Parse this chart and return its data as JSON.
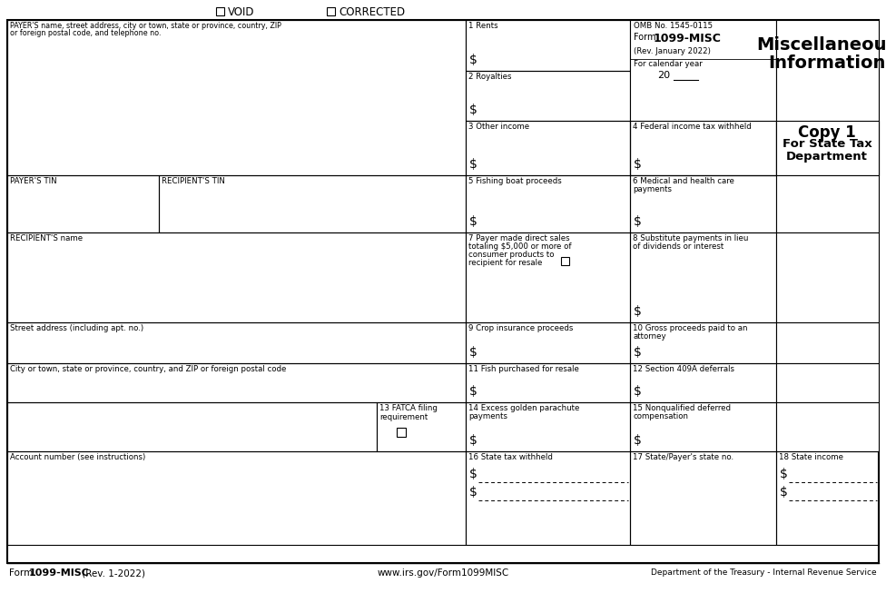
{
  "bg_color": "#FFFFFF",
  "light_blue": "#E8F0F8",
  "gray_bg": "#BBBBBB",
  "header_void_text": "VOID",
  "header_corrected_text": "CORRECTED",
  "form_title_line1": "Miscellaneous",
  "form_title_line2": "Information",
  "copy_text": "Copy 1",
  "copy_sub1": "For State Tax",
  "copy_sub2": "Department",
  "omb_text": "OMB No. 1545-0115",
  "form_bold": "1099-MISC",
  "form_pre": "Form ",
  "rev_text": "(Rev. January 2022)",
  "cal_year_text": "For calendar year",
  "cal_year_num": "20",
  "footer_form_pre": "Form ",
  "footer_form_bold": "1099-MISC",
  "footer_form_reg": " (Rev. 1-2022)",
  "footer_url": "www.irs.gov/Form1099MISC",
  "footer_dept": "Department of the Treasury - Internal Revenue Service",
  "FL": 8,
  "FR": 968,
  "FT": 22,
  "FB": 620,
  "C1": 8,
  "C2": 175,
  "C3": 513,
  "C4": 694,
  "C5": 855,
  "C6": 968,
  "C4b": 694,
  "R0": 22,
  "R1": 78,
  "R2": 133,
  "R3": 193,
  "R4": 256,
  "R5": 313,
  "R5b": 355,
  "R6": 400,
  "R7": 443,
  "R8": 497,
  "R9": 552,
  "R9b": 576,
  "R9c": 600,
  "RB": 620
}
